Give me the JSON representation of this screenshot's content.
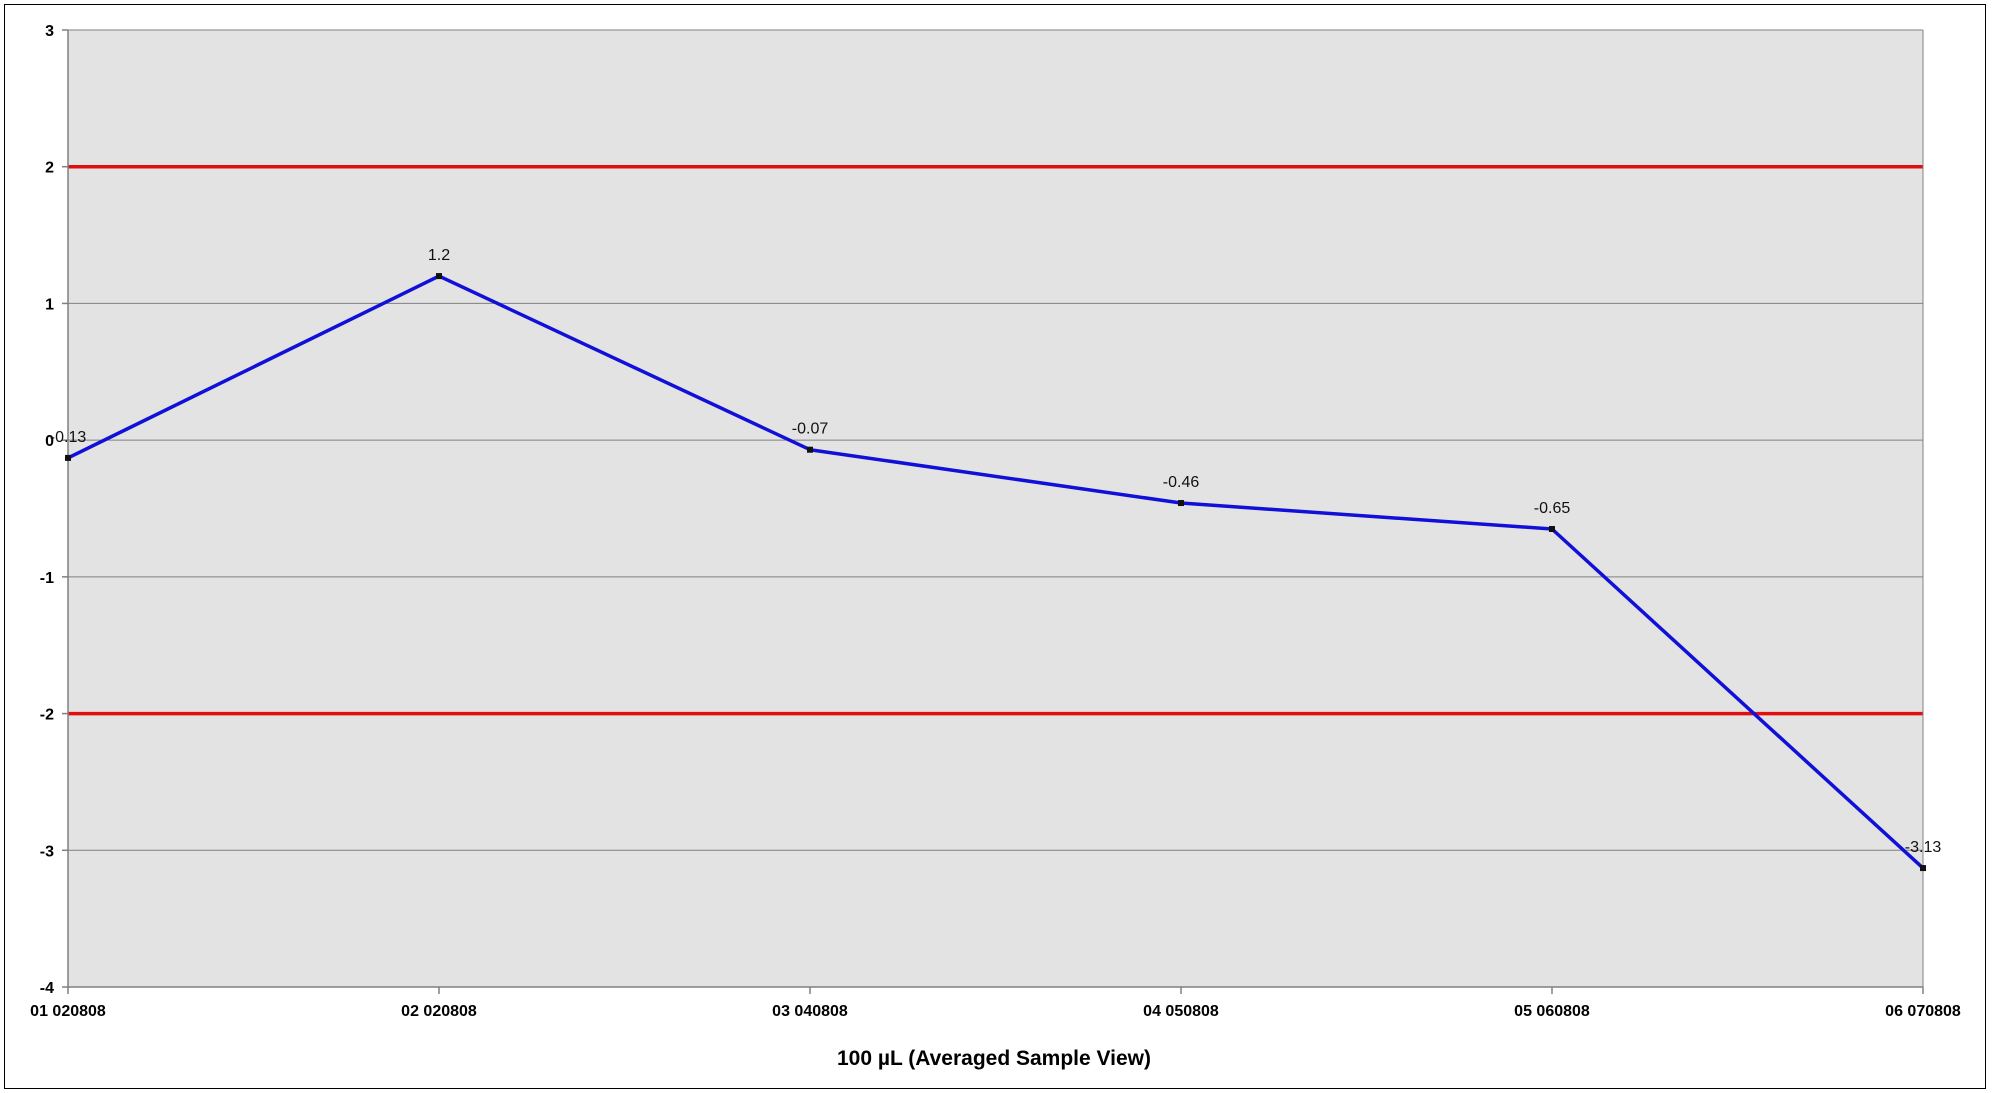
{
  "chart_data": {
    "type": "line",
    "categories": [
      "01 020808",
      "02 020808",
      "03 040808",
      "04 050808",
      "05 060808",
      "06 070808"
    ],
    "series": [
      {
        "values": [
          -0.13,
          1.2,
          -0.07,
          -0.46,
          -0.65,
          -3.13
        ],
        "color": "#1010d8"
      }
    ],
    "data_labels": [
      "-0.13",
      "1.2",
      "-0.07",
      "-0.46",
      "-0.65",
      "-3.13"
    ],
    "reference_lines": [
      {
        "value": 2,
        "color": "#e01010"
      },
      {
        "value": -2,
        "color": "#e01010"
      }
    ],
    "title": "",
    "xlabel": "100 µL    (Averaged Sample View)",
    "ylabel": "",
    "ylim": [
      -4,
      3
    ],
    "yticks": [
      3,
      2,
      1,
      0,
      -1,
      -2,
      -3,
      -4
    ],
    "grid": true,
    "legend": "none",
    "plot_background": "#e3e3e3"
  }
}
